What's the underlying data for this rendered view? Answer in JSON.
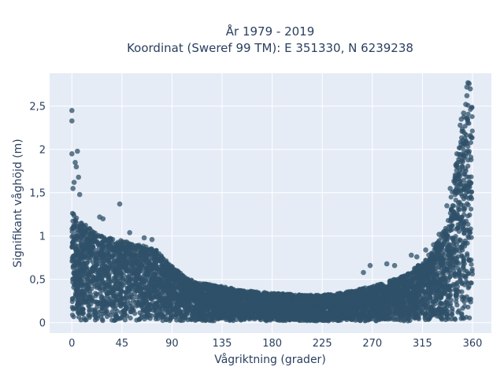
{
  "chart_data": {
    "type": "scatter",
    "title": [
      "År 1979 - 2019",
      "Koordinat (Sweref 99 TM): E 351330, N 6239238"
    ],
    "xlabel": "Vågriktning (grader)",
    "ylabel": "Signifikant våghöjd (m)",
    "xlim": [
      -20,
      377
    ],
    "ylim": [
      -0.12,
      2.88
    ],
    "xticks": [
      0,
      45,
      90,
      135,
      180,
      225,
      270,
      315,
      360
    ],
    "xtick_labels": [
      "0",
      "45",
      "90",
      "135",
      "180",
      "225",
      "270",
      "315",
      "360"
    ],
    "yticks": [
      0,
      0.5,
      1,
      1.5,
      2,
      2.5
    ],
    "ytick_labels": [
      "0",
      "0,5",
      "1",
      "1,5",
      "2",
      "2,5"
    ],
    "grid": true,
    "legend": "none",
    "colors": {
      "marker": "#2f5068",
      "plot_bg": "#e5ecf6",
      "grid": "#ffffff",
      "text": "#2a3f5f"
    },
    "envelope": {
      "x": [
        0,
        5,
        10,
        20,
        30,
        45,
        60,
        75,
        90,
        105,
        120,
        135,
        150,
        165,
        180,
        195,
        210,
        225,
        240,
        255,
        270,
        285,
        300,
        315,
        325,
        335,
        340,
        345,
        350,
        355,
        360
      ],
      "y_max": [
        1.3,
        1.2,
        1.15,
        1.05,
        1.0,
        0.95,
        0.9,
        0.85,
        0.65,
        0.5,
        0.45,
        0.42,
        0.38,
        0.36,
        0.34,
        0.33,
        0.32,
        0.32,
        0.34,
        0.38,
        0.42,
        0.48,
        0.55,
        0.7,
        0.85,
        1.1,
        1.4,
        1.8,
        2.2,
        2.6,
        2.5
      ]
    },
    "outliers": [
      {
        "x": 0,
        "y": 2.45
      },
      {
        "x": 0,
        "y": 2.33
      },
      {
        "x": 0,
        "y": 1.95
      },
      {
        "x": 5,
        "y": 1.98
      },
      {
        "x": 3,
        "y": 1.85
      },
      {
        "x": 4,
        "y": 1.8
      },
      {
        "x": 6,
        "y": 1.68
      },
      {
        "x": 2,
        "y": 1.62
      },
      {
        "x": 1,
        "y": 1.55
      },
      {
        "x": 7,
        "y": 1.48
      },
      {
        "x": 43,
        "y": 1.37
      },
      {
        "x": 25,
        "y": 1.22
      },
      {
        "x": 28,
        "y": 1.2
      },
      {
        "x": 52,
        "y": 1.04
      },
      {
        "x": 65,
        "y": 0.98
      },
      {
        "x": 72,
        "y": 0.96
      },
      {
        "x": 262,
        "y": 0.58
      },
      {
        "x": 268,
        "y": 0.66
      },
      {
        "x": 283,
        "y": 0.68
      },
      {
        "x": 290,
        "y": 0.66
      },
      {
        "x": 305,
        "y": 0.78
      },
      {
        "x": 310,
        "y": 0.76
      },
      {
        "x": 318,
        "y": 0.84
      },
      {
        "x": 325,
        "y": 0.9
      },
      {
        "x": 330,
        "y": 1.02
      },
      {
        "x": 337,
        "y": 1.35
      },
      {
        "x": 340,
        "y": 1.55
      },
      {
        "x": 345,
        "y": 1.82
      },
      {
        "x": 346,
        "y": 1.95
      },
      {
        "x": 349,
        "y": 2.28
      },
      {
        "x": 350,
        "y": 2.35
      },
      {
        "x": 352,
        "y": 2.42
      },
      {
        "x": 354,
        "y": 2.52
      },
      {
        "x": 355,
        "y": 2.62
      },
      {
        "x": 355,
        "y": 2.72
      },
      {
        "x": 356,
        "y": 2.77
      },
      {
        "x": 357,
        "y": 2.76
      },
      {
        "x": 358,
        "y": 2.7
      }
    ]
  }
}
